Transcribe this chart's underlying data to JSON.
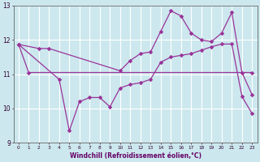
{
  "xlabel": "Windchill (Refroidissement éolien,°C)",
  "xlim_min": -0.5,
  "xlim_max": 23.5,
  "ylim_min": 9,
  "ylim_max": 13,
  "yticks": [
    9,
    10,
    11,
    12,
    13
  ],
  "xticks": [
    0,
    1,
    2,
    3,
    4,
    5,
    6,
    7,
    8,
    9,
    10,
    11,
    12,
    13,
    14,
    15,
    16,
    17,
    18,
    19,
    20,
    21,
    22,
    23
  ],
  "bg_color": "#cce8ee",
  "grid_color": "#ffffff",
  "line_color": "#993399",
  "line1_x": [
    0,
    1,
    23
  ],
  "line1_y": [
    11.87,
    11.05,
    11.05
  ],
  "line2_x": [
    0,
    2,
    3,
    10,
    11,
    12,
    13,
    14,
    15,
    16,
    17,
    18,
    19,
    20,
    21,
    22,
    23
  ],
  "line2_y": [
    11.87,
    11.75,
    11.75,
    11.1,
    11.4,
    11.6,
    11.65,
    12.25,
    12.85,
    12.7,
    12.2,
    12.0,
    11.95,
    12.2,
    12.8,
    11.05,
    10.4
  ],
  "line3_x": [
    0,
    4,
    5,
    6,
    7,
    8,
    9,
    10,
    11,
    12,
    13,
    14,
    15,
    16,
    17,
    18,
    19,
    20,
    21,
    22,
    23
  ],
  "line3_y": [
    11.87,
    10.85,
    9.35,
    10.2,
    10.32,
    10.32,
    10.05,
    10.6,
    10.7,
    10.75,
    10.85,
    11.35,
    11.5,
    11.55,
    11.6,
    11.7,
    11.8,
    11.88,
    11.88,
    10.35,
    9.85
  ],
  "xlabel_color": "#660066",
  "tick_color": "#330033",
  "spine_color": "#666666"
}
